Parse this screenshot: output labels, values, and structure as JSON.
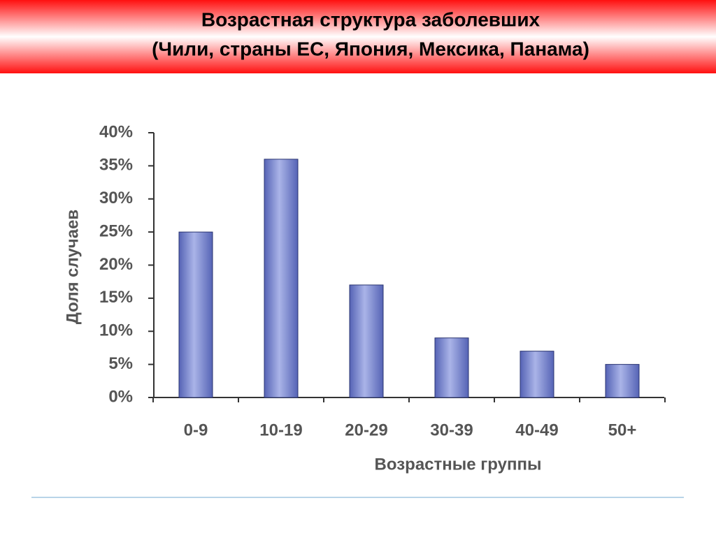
{
  "chart_data": {
    "type": "bar",
    "title": "Возрастная структура заболевших",
    "subtitle": "(Чили, страны ЕС, Япония, Мексика, Панама)",
    "x_label": "Возрастные группы",
    "y_label": "Доля случаев",
    "categories": [
      "0-9",
      "10-19",
      "20-29",
      "30-39",
      "40-49",
      "50+"
    ],
    "values": [
      25,
      36,
      17,
      9,
      7,
      5
    ],
    "color": "#5563b5",
    "ylim": [
      0,
      40
    ],
    "yticks": [
      {
        "value": 0,
        "label": "0%"
      },
      {
        "value": 5,
        "label": "5%"
      },
      {
        "value": 10,
        "label": "10%"
      },
      {
        "value": 15,
        "label": "15%"
      },
      {
        "value": 20,
        "label": "20%"
      },
      {
        "value": 25,
        "label": "25%"
      },
      {
        "value": 30,
        "label": "30%"
      },
      {
        "value": 35,
        "label": "35%"
      },
      {
        "value": 40,
        "label": "40%"
      }
    ],
    "grid": false
  }
}
